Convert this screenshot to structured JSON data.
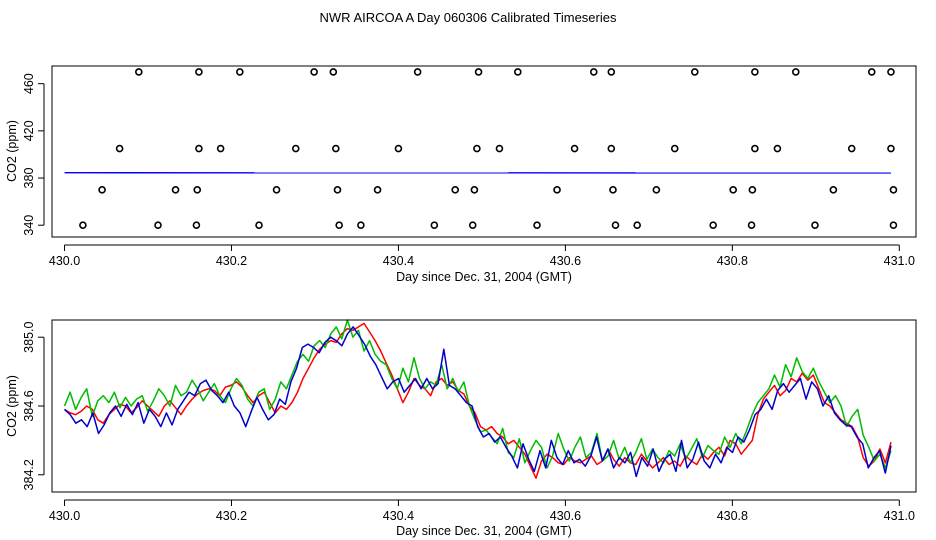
{
  "title": "NWR AIRCOA A  Day 060306  Calibrated Timeseries",
  "chart_data": [
    {
      "type": "scatter",
      "name": "raw-co2",
      "xlabel": "Day since Dec. 31, 2004 (GMT)",
      "ylabel": "CO2 (ppm)",
      "xlim": [
        429.985,
        431.02
      ],
      "ylim": [
        330,
        475
      ],
      "xticks": [
        430.0,
        430.2,
        430.4,
        430.6,
        430.8,
        431.0
      ],
      "xtick_labels": [
        "430.0",
        "430.2",
        "430.4",
        "430.6",
        "430.8",
        "431.0"
      ],
      "yticks": [
        340,
        380,
        420,
        460
      ],
      "ytick_labels": [
        "340",
        "380",
        "420",
        "460"
      ],
      "points": {
        "x": [
          430.089,
          430.161,
          430.21,
          430.299,
          430.322,
          430.423,
          430.496,
          430.543,
          430.634,
          430.655,
          430.755,
          430.827,
          430.876,
          430.967,
          430.99,
          430.066,
          430.161,
          430.187,
          430.277,
          430.325,
          430.4,
          430.494,
          430.521,
          430.611,
          430.655,
          430.731,
          430.827,
          430.854,
          430.943,
          430.99,
          430.045,
          430.133,
          430.159,
          430.254,
          430.327,
          430.375,
          430.468,
          430.491,
          430.59,
          430.657,
          430.709,
          430.801,
          430.824,
          430.921,
          430.993,
          430.022,
          430.112,
          430.158,
          430.233,
          430.329,
          430.355,
          430.443,
          430.489,
          430.566,
          430.66,
          430.686,
          430.777,
          430.823,
          430.899,
          430.993
        ],
        "y": [
          470,
          470,
          470,
          470,
          470,
          470,
          470,
          470,
          470,
          470,
          470,
          470,
          470,
          470,
          470,
          405,
          405,
          405,
          405,
          405,
          405,
          405,
          405,
          405,
          405,
          405,
          405,
          405,
          405,
          405,
          370,
          370,
          370,
          370,
          370,
          370,
          370,
          370,
          370,
          370,
          370,
          370,
          370,
          370,
          370,
          340,
          340,
          340,
          340,
          340,
          340,
          340,
          340,
          340,
          340,
          340,
          340,
          340,
          340,
          340
        ]
      },
      "series": [
        {
          "name": "calibrated",
          "color": "#0000ff",
          "x": [
            430.0,
            430.99
          ],
          "y": [
            384.5,
            384.3
          ]
        }
      ]
    },
    {
      "type": "line",
      "name": "calibrated-co2",
      "xlabel": "Day since Dec. 31, 2004 (GMT)",
      "ylabel": "CO2 (ppm)",
      "xlim": [
        429.985,
        431.02
      ],
      "ylim": [
        384.1,
        385.1
      ],
      "xticks": [
        430.0,
        430.2,
        430.4,
        430.6,
        430.8,
        431.0
      ],
      "xtick_labels": [
        "430.0",
        "430.2",
        "430.4",
        "430.6",
        "430.8",
        "431.0"
      ],
      "yticks": [
        384.2,
        384.6,
        385.0
      ],
      "ytick_labels": [
        "384.2",
        "384.6",
        "385.0"
      ],
      "x_start": 430.0,
      "x_end": 430.99,
      "series": [
        {
          "name": "red",
          "color": "#ff0000",
          "values": [
            384.58,
            384.56,
            384.55,
            384.57,
            384.6,
            384.58,
            384.52,
            384.5,
            384.55,
            384.58,
            384.61,
            384.6,
            384.56,
            384.59,
            384.63,
            384.6,
            384.57,
            384.54,
            384.6,
            384.63,
            384.59,
            384.55,
            384.6,
            384.64,
            384.67,
            384.69,
            384.7,
            384.69,
            384.66,
            384.71,
            384.72,
            384.74,
            384.71,
            384.66,
            384.62,
            384.66,
            384.68,
            384.62,
            384.56,
            384.6,
            384.58,
            384.62,
            384.68,
            384.76,
            384.82,
            384.88,
            384.93,
            384.96,
            384.98,
            384.97,
            385.02,
            385.05,
            385.04,
            385.06,
            385.08,
            385.03,
            384.98,
            384.92,
            384.85,
            384.78,
            384.7,
            384.62,
            384.68,
            384.76,
            384.72,
            384.7,
            384.66,
            384.74,
            384.76,
            384.72,
            384.74,
            384.69,
            384.67,
            384.6,
            384.56,
            384.48,
            384.46,
            384.48,
            384.44,
            384.42,
            384.38,
            384.4,
            384.36,
            384.32,
            384.25,
            384.18,
            384.28,
            384.32,
            384.3,
            384.27,
            384.26,
            384.3,
            384.28,
            384.27,
            384.29,
            384.31,
            384.26,
            384.28,
            384.35,
            384.29,
            384.25,
            384.3,
            384.27,
            384.26,
            384.32,
            384.28,
            384.24,
            384.27,
            384.3,
            384.26,
            384.28,
            384.25,
            384.31,
            384.28,
            384.26,
            384.32,
            384.29,
            384.33,
            384.36,
            384.31,
            384.4,
            384.38,
            384.32,
            384.36,
            384.4,
            384.55,
            384.64,
            384.68,
            384.72,
            384.66,
            384.69,
            384.76,
            384.74,
            384.79,
            384.75,
            384.78,
            384.7,
            384.62,
            384.6,
            384.56,
            384.52,
            384.5,
            384.48,
            384.42,
            384.3,
            384.25,
            384.28,
            384.35,
            384.27,
            384.39
          ]
        },
        {
          "name": "green",
          "color": "#00bb00",
          "values": [
            384.6,
            384.68,
            384.58,
            384.65,
            384.7,
            384.54,
            384.63,
            384.66,
            384.62,
            384.68,
            384.59,
            384.65,
            384.6,
            384.64,
            384.66,
            384.57,
            384.63,
            384.7,
            384.66,
            384.6,
            384.72,
            384.66,
            384.68,
            384.75,
            384.7,
            384.63,
            384.68,
            384.73,
            384.66,
            384.62,
            384.7,
            384.76,
            384.72,
            384.64,
            384.6,
            384.68,
            384.7,
            384.58,
            384.64,
            384.74,
            384.7,
            384.78,
            384.86,
            384.9,
            384.86,
            384.95,
            384.98,
            384.94,
            385.02,
            385.06,
            384.99,
            385.1,
            385.0,
            385.04,
            384.92,
            384.98,
            384.9,
            384.86,
            384.84,
            384.76,
            384.7,
            384.82,
            384.74,
            384.88,
            384.76,
            384.7,
            384.74,
            384.72,
            384.84,
            384.7,
            384.76,
            384.68,
            384.74,
            384.6,
            384.52,
            384.45,
            384.46,
            384.42,
            384.38,
            384.47,
            384.33,
            384.3,
            384.41,
            384.27,
            384.34,
            384.4,
            384.36,
            384.24,
            384.31,
            384.44,
            384.35,
            384.28,
            384.36,
            384.42,
            384.3,
            384.33,
            384.44,
            384.28,
            384.31,
            384.4,
            384.29,
            384.36,
            384.27,
            384.33,
            384.41,
            384.29,
            384.35,
            384.3,
            384.27,
            384.34,
            384.31,
            384.38,
            384.29,
            384.35,
            384.41,
            384.3,
            384.37,
            384.34,
            384.32,
            384.42,
            384.36,
            384.44,
            384.38,
            384.46,
            384.55,
            384.62,
            384.66,
            384.7,
            384.78,
            384.71,
            384.84,
            384.77,
            384.88,
            384.8,
            384.76,
            384.82,
            384.74,
            384.68,
            384.62,
            384.66,
            384.6,
            384.48,
            384.54,
            384.58,
            384.43,
            384.36,
            384.28,
            384.32,
            384.24,
            384.34
          ]
        },
        {
          "name": "blue",
          "color": "#0000cc",
          "values": [
            384.58,
            384.55,
            384.5,
            384.52,
            384.48,
            384.56,
            384.44,
            384.49,
            384.56,
            384.6,
            384.54,
            384.61,
            384.55,
            384.62,
            384.5,
            384.58,
            384.54,
            384.48,
            384.56,
            384.49,
            384.58,
            384.63,
            384.68,
            384.66,
            384.73,
            384.75,
            384.69,
            384.66,
            384.62,
            384.68,
            384.6,
            384.56,
            384.48,
            384.57,
            384.65,
            384.58,
            384.52,
            384.55,
            384.64,
            384.61,
            384.74,
            384.82,
            384.94,
            384.96,
            384.94,
            384.91,
            384.97,
            385.0,
            384.98,
            384.95,
            385.02,
            385.06,
            385.01,
            384.96,
            384.89,
            384.84,
            384.77,
            384.7,
            384.74,
            384.76,
            384.68,
            384.72,
            384.76,
            384.7,
            384.76,
            384.7,
            384.73,
            384.93,
            384.72,
            384.7,
            384.66,
            384.62,
            384.6,
            384.48,
            384.42,
            384.44,
            384.39,
            384.42,
            384.36,
            384.31,
            384.24,
            384.38,
            384.29,
            384.22,
            384.34,
            384.24,
            384.4,
            384.3,
            384.26,
            384.34,
            384.27,
            384.29,
            384.25,
            384.31,
            384.42,
            384.28,
            384.35,
            384.24,
            384.3,
            384.27,
            384.33,
            384.19,
            384.3,
            384.25,
            384.35,
            384.22,
            384.29,
            384.32,
            384.22,
            384.4,
            384.24,
            384.29,
            384.39,
            384.28,
            384.24,
            384.32,
            384.27,
            384.36,
            384.33,
            384.42,
            384.39,
            384.46,
            384.55,
            384.58,
            384.64,
            384.58,
            384.69,
            384.73,
            384.68,
            384.72,
            384.76,
            384.64,
            384.74,
            384.7,
            384.6,
            384.66,
            384.56,
            384.52,
            384.49,
            384.48,
            384.42,
            384.38,
            384.24,
            384.3,
            384.34,
            384.21,
            384.37
          ]
        }
      ]
    }
  ]
}
